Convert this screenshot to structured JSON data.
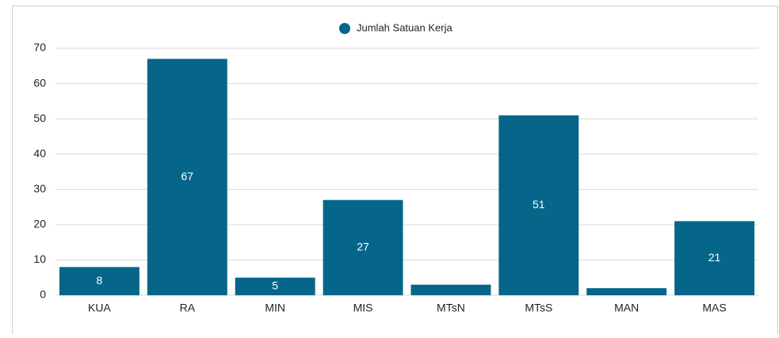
{
  "chart_data": {
    "type": "bar",
    "legend": "Jumlah Satuan Kerja",
    "categories": [
      "KUA",
      "RA",
      "MIN",
      "MIS",
      "MTsN",
      "MTsS",
      "MAN",
      "MAS"
    ],
    "values": [
      8,
      67,
      5,
      27,
      3,
      51,
      2,
      21
    ],
    "color": "#05668a",
    "ylim": [
      0,
      70
    ],
    "yticks": [
      0,
      10,
      20,
      30,
      40,
      50,
      60,
      70
    ],
    "grid": true,
    "legend_position": "top"
  }
}
